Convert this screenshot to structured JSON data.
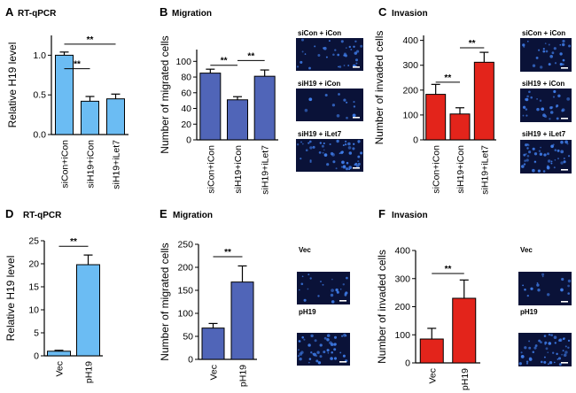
{
  "colors": {
    "light_blue": "#6bbcf3",
    "purple_blue": "#5065b8",
    "red": "#e3241b",
    "micro_bg": "#0a1238",
    "micro_dots": "#3f7ce8",
    "scale_bar": "#ffffff"
  },
  "chart_data": [
    {
      "panel": "A",
      "title": "RT-qPCR",
      "type": "bar",
      "ylabel": "Relative H19 level",
      "ylim": [
        0,
        1.25
      ],
      "yticks": [
        "0.0",
        "0.5",
        "1.0"
      ],
      "ytick_values": [
        0,
        0.5,
        1.0
      ],
      "categories": [
        "siCon+iCon",
        "siH19+iCon",
        "siH19+iLet7"
      ],
      "values": [
        1.0,
        0.42,
        0.45
      ],
      "errors": [
        0.04,
        0.06,
        0.06
      ],
      "color": "light_blue",
      "rotate_labels": true,
      "significance": [
        {
          "from": 0,
          "to": 1,
          "label": "**",
          "y": 0.83
        },
        {
          "from": 0,
          "to": 2,
          "label": "**",
          "y": 1.14
        }
      ]
    },
    {
      "panel": "B",
      "title": "Migration",
      "type": "bar",
      "ylabel": "Number of migrated cells",
      "ylim": [
        0,
        115
      ],
      "yticks": [
        "0",
        "20",
        "40",
        "60",
        "80",
        "100"
      ],
      "ytick_values": [
        0,
        20,
        40,
        60,
        80,
        100
      ],
      "categories": [
        "siCon+iCon",
        "siH19+iCon",
        "siH19+iLet7"
      ],
      "values": [
        85,
        51,
        81
      ],
      "errors": [
        5,
        4,
        8
      ],
      "color": "purple_blue",
      "rotate_labels": true,
      "significance": [
        {
          "from": 0,
          "to": 1,
          "label": "**",
          "y": 95
        },
        {
          "from": 1,
          "to": 2,
          "label": "**",
          "y": 101
        }
      ]
    },
    {
      "panel": "C",
      "title": "Invasion",
      "type": "bar",
      "ylabel": "Number of invaded cells",
      "ylim": [
        0,
        420
      ],
      "yticks": [
        "0",
        "100",
        "200",
        "300",
        "400"
      ],
      "ytick_values": [
        0,
        100,
        200,
        300,
        400
      ],
      "categories": [
        "siCon+iCon",
        "siH19+iCon",
        "siH19+iLet7"
      ],
      "values": [
        183,
        104,
        312
      ],
      "errors": [
        40,
        25,
        40
      ],
      "color": "red",
      "rotate_labels": true,
      "significance": [
        {
          "from": 0,
          "to": 1,
          "label": "**",
          "y": 232
        },
        {
          "from": 1,
          "to": 2,
          "label": "**",
          "y": 370
        }
      ]
    },
    {
      "panel": "D",
      "title": "RT-qPCR",
      "type": "bar",
      "ylabel": "Relative H19 level",
      "ylim": [
        0,
        25
      ],
      "yticks": [
        "0",
        "5",
        "10",
        "15",
        "20",
        "25"
      ],
      "ytick_values": [
        0,
        5,
        10,
        15,
        20,
        25
      ],
      "categories": [
        "Vec",
        "pH19"
      ],
      "values": [
        1.0,
        19.8
      ],
      "errors": [
        0.2,
        2.1
      ],
      "color": "light_blue",
      "rotate_labels": true,
      "significance": [
        {
          "from": 0,
          "to": 1,
          "label": "**",
          "y": 23.8
        }
      ]
    },
    {
      "panel": "E",
      "title": "Migration",
      "type": "bar",
      "ylabel": "Number of migrated cells",
      "ylim": [
        0,
        250
      ],
      "yticks": [
        "0",
        "50",
        "100",
        "150",
        "200",
        "250"
      ],
      "ytick_values": [
        0,
        50,
        100,
        150,
        200,
        250
      ],
      "categories": [
        "Vec",
        "pH19"
      ],
      "values": [
        68,
        168
      ],
      "errors": [
        10,
        35
      ],
      "color": "purple_blue",
      "rotate_labels": true,
      "significance": [
        {
          "from": 0,
          "to": 1,
          "label": "**",
          "y": 223
        }
      ]
    },
    {
      "panel": "F",
      "title": "Invasion",
      "type": "bar",
      "ylabel": "Number of invaded cells",
      "ylim": [
        0,
        400
      ],
      "yticks": [
        "0",
        "100",
        "200",
        "300",
        "400"
      ],
      "ytick_values": [
        0,
        100,
        200,
        300,
        400
      ],
      "categories": [
        "Vec",
        "pH19"
      ],
      "values": [
        85,
        230
      ],
      "errors": [
        38,
        65
      ],
      "color": "red",
      "rotate_labels": true,
      "significance": [
        {
          "from": 0,
          "to": 1,
          "label": "**",
          "y": 318
        }
      ]
    }
  ],
  "micrographs": {
    "B": [
      "siCon + iCon",
      "siH19 + iCon",
      "siH19 + iLet7"
    ],
    "C": [
      "siCon + iCon",
      "siH19 + iCon",
      "siH19 + iLet7"
    ],
    "E": [
      "Vec",
      "pH19"
    ],
    "F": [
      "Vec",
      "pH19"
    ]
  }
}
